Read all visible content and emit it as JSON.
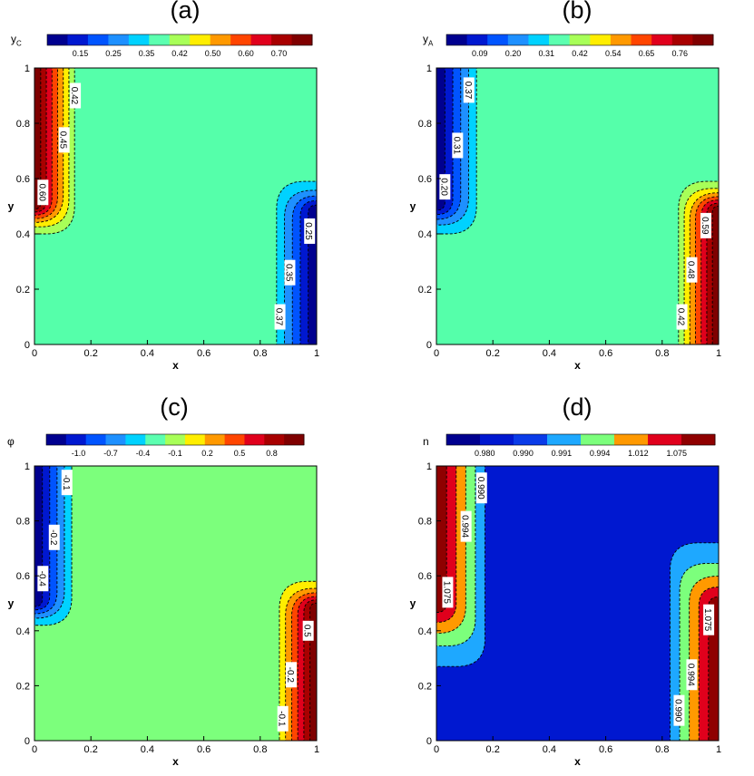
{
  "colormap": [
    "#00008F",
    "#0018D0",
    "#0054FF",
    "#1E90FF",
    "#00D2FF",
    "#5CFFB0",
    "#A8FF58",
    "#FFEE00",
    "#FF9900",
    "#FF4500",
    "#E0001C",
    "#A80000",
    "#7F0000"
  ],
  "chart_data": [
    {
      "type": "heatmap",
      "panel_label": "(a)",
      "colorbar_title": "y",
      "colorbar_title_sub": "C",
      "colorbar_ticks": [
        "0.15",
        "0.25",
        "0.35",
        "0.42",
        "0.50",
        "0.60",
        "0.70"
      ],
      "bulk_level": 0.42,
      "xlabel": "x",
      "ylabel": "y",
      "xlim": [
        0,
        1
      ],
      "ylim": [
        0,
        1
      ],
      "xticks": [
        "0",
        "0.2",
        "0.4",
        "0.6",
        "0.8",
        "1"
      ],
      "yticks": [
        "0",
        "0.2",
        "0.4",
        "0.6",
        "0.8",
        "1"
      ],
      "left_wall": {
        "trend": "high",
        "contour_labels": [
          {
            "text": "0.42",
            "x": 0.145,
            "y": 0.9
          },
          {
            "text": "0.45",
            "x": 0.105,
            "y": 0.74
          },
          {
            "text": "0.60",
            "x": 0.03,
            "y": 0.55
          }
        ]
      },
      "right_wall": {
        "trend": "low",
        "contour_labels": [
          {
            "text": "0.25",
            "x": 0.975,
            "y": 0.41
          },
          {
            "text": "0.35",
            "x": 0.905,
            "y": 0.26
          },
          {
            "text": "0.37",
            "x": 0.87,
            "y": 0.1
          }
        ]
      }
    },
    {
      "type": "heatmap",
      "panel_label": "(b)",
      "colorbar_title": "y",
      "colorbar_title_sub": "A",
      "colorbar_ticks": [
        "0.09",
        "0.20",
        "0.31",
        "0.42",
        "0.54",
        "0.65",
        "0.76"
      ],
      "bulk_level": 0.42,
      "xlabel": "x",
      "ylabel": "y",
      "xlim": [
        0,
        1
      ],
      "ylim": [
        0,
        1
      ],
      "xticks": [
        "0",
        "0.2",
        "0.4",
        "0.6",
        "0.8",
        "1"
      ],
      "yticks": [
        "0",
        "0.2",
        "0.4",
        "0.6",
        "0.8",
        "1"
      ],
      "left_wall": {
        "trend": "low",
        "contour_labels": [
          {
            "text": "0.37",
            "x": 0.115,
            "y": 0.92
          },
          {
            "text": "0.31",
            "x": 0.075,
            "y": 0.72
          },
          {
            "text": "0.20",
            "x": 0.03,
            "y": 0.57
          }
        ]
      },
      "right_wall": {
        "trend": "high",
        "contour_labels": [
          {
            "text": "0.59",
            "x": 0.955,
            "y": 0.43
          },
          {
            "text": "0.48",
            "x": 0.905,
            "y": 0.27
          },
          {
            "text": "0.42",
            "x": 0.87,
            "y": 0.1
          }
        ]
      }
    },
    {
      "type": "heatmap",
      "panel_label": "(c)",
      "colorbar_title": "φ",
      "colorbar_title_sub": "",
      "colorbar_ticks": [
        "-1.0",
        "-0.7",
        "-0.4",
        "-0.1",
        "0.2",
        "0.5",
        "0.8"
      ],
      "bulk_level": 0.0,
      "xlabel": "x",
      "ylabel": "y",
      "xlim": [
        0,
        1
      ],
      "ylim": [
        0,
        1
      ],
      "xticks": [
        "0",
        "0.2",
        "0.4",
        "0.6",
        "0.8",
        "1"
      ],
      "yticks": [
        "0",
        "0.2",
        "0.4",
        "0.6",
        "0.8",
        "1"
      ],
      "left_wall": {
        "trend": "low",
        "contour_labels": [
          {
            "text": "-0.1",
            "x": 0.115,
            "y": 0.94
          },
          {
            "text": "-0.2",
            "x": 0.07,
            "y": 0.74
          },
          {
            "text": "-0.4",
            "x": 0.03,
            "y": 0.59
          }
        ]
      },
      "right_wall": {
        "trend": "high",
        "contour_labels": [
          {
            "text": "0.5",
            "x": 0.97,
            "y": 0.4
          },
          {
            "text": "-0.2",
            "x": 0.91,
            "y": 0.24
          },
          {
            "text": "-0.1",
            "x": 0.88,
            "y": 0.08
          }
        ]
      }
    },
    {
      "type": "heatmap",
      "panel_label": "(d)",
      "colorbar_title": "n",
      "colorbar_title_sub": "",
      "colorbar_ticks": [
        "0.980",
        "0.990",
        "0.991",
        "0.994",
        "1.012",
        "1.075"
      ],
      "bulk_level": 0.99,
      "xlabel": "x",
      "ylabel": "y",
      "xlim": [
        0,
        1
      ],
      "ylim": [
        0,
        1
      ],
      "xticks": [
        "0",
        "0.2",
        "0.4",
        "0.6",
        "0.8",
        "1"
      ],
      "yticks": [
        "0",
        "0.2",
        "0.4",
        "0.6",
        "0.8",
        "1"
      ],
      "left_wall": {
        "trend": "high",
        "contour_labels": [
          {
            "text": "0.990",
            "x": 0.16,
            "y": 0.92
          },
          {
            "text": "0.994",
            "x": 0.105,
            "y": 0.78
          },
          {
            "text": "1.075",
            "x": 0.04,
            "y": 0.54
          }
        ]
      },
      "right_wall": {
        "trend": "high",
        "contour_labels": [
          {
            "text": "1.075",
            "x": 0.965,
            "y": 0.44
          },
          {
            "text": "0.994",
            "x": 0.905,
            "y": 0.24
          },
          {
            "text": "0.990",
            "x": 0.86,
            "y": 0.11
          }
        ]
      }
    }
  ]
}
